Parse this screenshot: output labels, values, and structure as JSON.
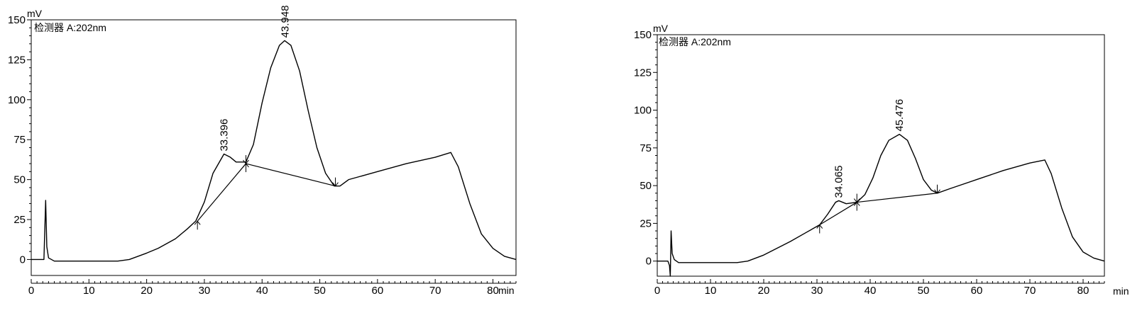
{
  "chart_data": [
    {
      "type": "line",
      "title": "",
      "xlabel": "",
      "ylabel": "",
      "y_unit": "mV",
      "x_unit": "min",
      "detector_label": "检测器 A:202nm",
      "xlim": [
        0,
        84
      ],
      "ylim": [
        -10,
        150
      ],
      "x_ticks": [
        0,
        10,
        20,
        30,
        40,
        50,
        60,
        70,
        80
      ],
      "y_ticks": [
        0,
        25,
        50,
        75,
        100,
        125,
        150
      ],
      "grid": false,
      "series": [
        {
          "name": "",
          "x": [
            0,
            2.2,
            2.5,
            2.7,
            3.0,
            3.5,
            4,
            5,
            10,
            15,
            17,
            20,
            22,
            25,
            27,
            28.5,
            30,
            31.5,
            33.4,
            34.5,
            35.5,
            37.2,
            38.5,
            40,
            41.5,
            43,
            43.9,
            45,
            46.5,
            48,
            49.5,
            51,
            52.5,
            53.5,
            55,
            60,
            65,
            70,
            72.7,
            74,
            76,
            78,
            80,
            82,
            84
          ],
          "y": [
            0,
            0,
            37,
            8,
            1,
            0,
            -1,
            -1,
            -1,
            -1,
            0,
            4,
            7,
            13,
            19,
            24,
            36,
            54,
            66,
            64,
            61,
            61,
            72,
            98,
            120,
            134,
            137,
            134,
            118,
            93,
            70,
            54,
            46,
            46,
            50,
            55,
            60,
            64,
            67,
            58,
            35,
            16,
            7,
            2,
            0
          ]
        }
      ],
      "peak_labels": [
        {
          "x": 33.396,
          "y": 66,
          "label": "33.396"
        },
        {
          "x": 43.948,
          "y": 137,
          "label": "43.948"
        }
      ],
      "baselines": [
        {
          "x1": 28.8,
          "y1": 24,
          "x2": 37.2,
          "y2": 60
        },
        {
          "x1": 37.2,
          "y1": 60,
          "x2": 52.7,
          "y2": 46
        }
      ],
      "arrows": [
        {
          "x": 28.8,
          "y": 24,
          "dir": "up"
        },
        {
          "x": 37.2,
          "y": 60,
          "dir": "both"
        },
        {
          "x": 52.7,
          "y": 46,
          "dir": "down"
        }
      ]
    },
    {
      "type": "line",
      "title": "",
      "xlabel": "",
      "ylabel": "",
      "y_unit": "mV",
      "x_unit": "min",
      "detector_label": "检测器 A:202nm",
      "xlim": [
        0,
        84
      ],
      "ylim": [
        -10,
        150
      ],
      "x_ticks": [
        0,
        10,
        20,
        30,
        40,
        50,
        60,
        70,
        80
      ],
      "y_ticks": [
        0,
        25,
        50,
        75,
        100,
        125,
        150
      ],
      "grid": false,
      "series": [
        {
          "name": "",
          "x": [
            0,
            2.0,
            2.3,
            2.45,
            2.6,
            2.8,
            3.2,
            4,
            5,
            10,
            15,
            17,
            20,
            25,
            28,
            30.5,
            32,
            33.5,
            34.1,
            35.5,
            37.5,
            39,
            40.5,
            42,
            43.5,
            45.5,
            47,
            48.5,
            50,
            51.5,
            52.6,
            55,
            60,
            65,
            70,
            72.8,
            74,
            76,
            78,
            80,
            82,
            84
          ],
          "y": [
            0,
            0,
            -3,
            -10,
            20,
            5,
            1,
            -1,
            -1,
            -1,
            -1,
            0,
            4,
            13,
            19,
            24,
            31,
            39,
            40,
            38,
            39,
            44,
            55,
            70,
            80,
            84,
            80,
            68,
            54,
            47,
            45,
            48,
            54,
            60,
            65,
            67,
            58,
            35,
            16,
            6,
            2,
            0
          ]
        }
      ],
      "peak_labels": [
        {
          "x": 34.065,
          "y": 40,
          "label": "34.065"
        },
        {
          "x": 45.476,
          "y": 84,
          "label": "45.476"
        }
      ],
      "baselines": [
        {
          "x1": 30.5,
          "y1": 24,
          "x2": 37.5,
          "y2": 39
        },
        {
          "x1": 37.5,
          "y1": 39,
          "x2": 52.6,
          "y2": 45
        }
      ],
      "arrows": [
        {
          "x": 30.5,
          "y": 24,
          "dir": "up"
        },
        {
          "x": 37.5,
          "y": 39,
          "dir": "both"
        },
        {
          "x": 52.6,
          "y": 45,
          "dir": "down"
        }
      ]
    }
  ]
}
